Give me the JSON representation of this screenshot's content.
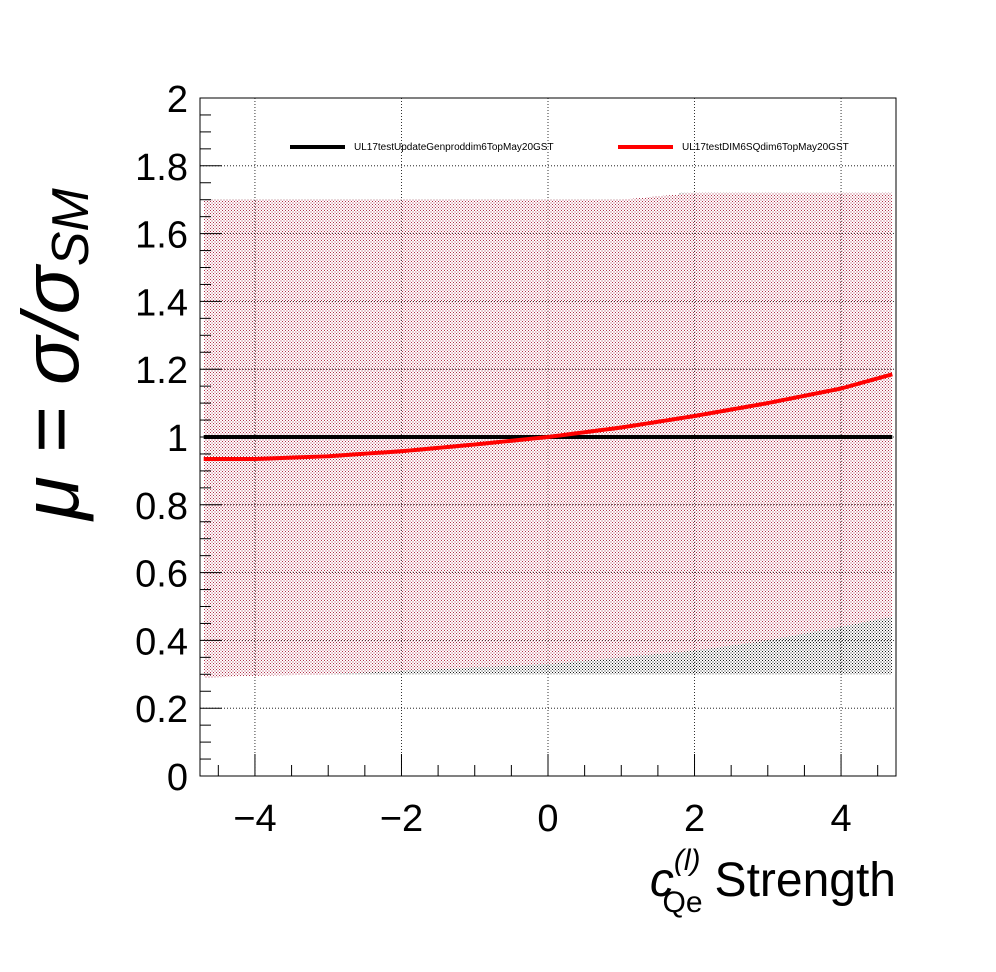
{
  "chart_data": {
    "type": "line",
    "xlabel": {
      "symbol": "c",
      "superscript": "(l)",
      "subscript": "Qe",
      "text": "Strength"
    },
    "ylabel": {
      "main": "μ = σ/σ",
      "subscript": "SM"
    },
    "xlim": [
      -4.75,
      4.75
    ],
    "ylim": [
      0,
      2
    ],
    "x_ticks": [
      -4,
      -2,
      0,
      2,
      4
    ],
    "x_tick_labels": [
      "−4",
      "−2",
      "0",
      "2",
      "4"
    ],
    "y_ticks": [
      0,
      0.2,
      0.4,
      0.6,
      0.8,
      1,
      1.2,
      1.4,
      1.6,
      1.8,
      2
    ],
    "y_tick_labels": [
      "0",
      "0.2",
      "0.4",
      "0.6",
      "0.8",
      "1",
      "1.2",
      "1.4",
      "1.6",
      "1.8",
      "2"
    ],
    "grid": true,
    "legend_position": "top",
    "series": [
      {
        "name": "UL17testUpdateGenproddim6TopMay20GST",
        "color": "#000000",
        "x": [
          -4.7,
          -3,
          -1,
          0,
          1,
          3,
          4.7
        ],
        "values": [
          1.0,
          1.0,
          1.0,
          1.0,
          1.0,
          1.0,
          1.0
        ],
        "band": {
          "color": "#1a1a1a",
          "x": [
            -4.7,
            -1,
            0,
            1.7,
            1.8,
            4.7
          ],
          "upper": [
            1.7,
            1.7,
            1.7,
            1.7,
            1.72,
            1.72
          ],
          "lower": [
            0.3,
            0.3,
            0.3,
            0.3,
            0.3,
            0.3
          ]
        }
      },
      {
        "name": "UL17testDIM6SQdim6TopMay20GST",
        "color": "#ff0000",
        "x": [
          -4.7,
          -4,
          -3,
          -2,
          -1,
          0,
          1,
          2,
          3,
          4,
          4.7
        ],
        "values": [
          0.935,
          0.935,
          0.943,
          0.958,
          0.978,
          1.0,
          1.028,
          1.062,
          1.1,
          1.143,
          1.185
        ],
        "band": {
          "color": "#c0506a",
          "x": [
            -4.7,
            -4,
            -3,
            -2,
            -1,
            0,
            1,
            2,
            3,
            4,
            4.7
          ],
          "upper": [
            1.7,
            1.7,
            1.7,
            1.7,
            1.7,
            1.7,
            1.7,
            1.72,
            1.72,
            1.72,
            1.72
          ],
          "lower": [
            0.29,
            0.295,
            0.3,
            0.31,
            0.32,
            0.33,
            0.35,
            0.37,
            0.4,
            0.44,
            0.47
          ]
        }
      }
    ]
  }
}
